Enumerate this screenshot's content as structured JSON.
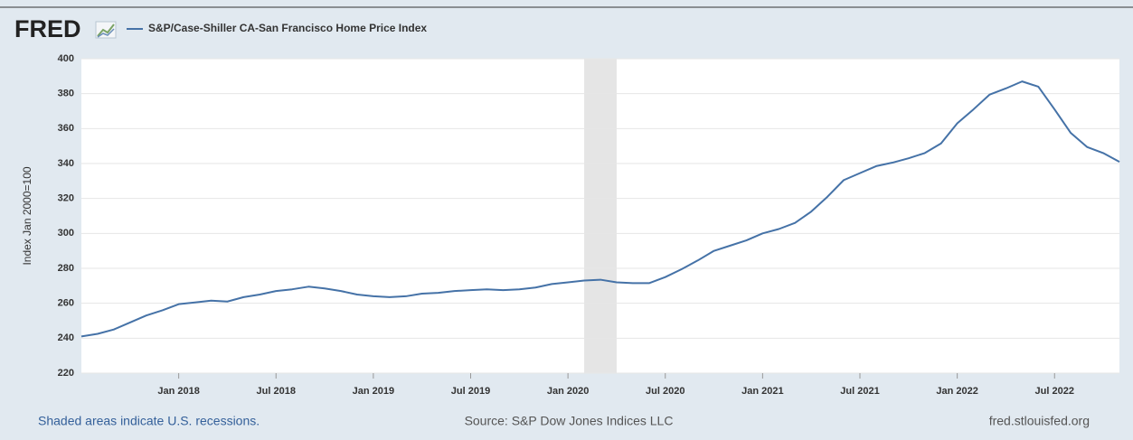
{
  "chart_data": {
    "type": "line",
    "logo": "FRED",
    "ylabel": "Index Jan 2000=100",
    "note": "Shaded areas indicate U.S. recessions.",
    "source": "Source: S&P Dow Jones Indices LLC",
    "site": "fred.stlouisfed.org",
    "x": [
      "2017-07",
      "2017-08",
      "2017-09",
      "2017-10",
      "2017-11",
      "2017-12",
      "2018-01",
      "2018-02",
      "2018-03",
      "2018-04",
      "2018-05",
      "2018-06",
      "2018-07",
      "2018-08",
      "2018-09",
      "2018-10",
      "2018-11",
      "2018-12",
      "2019-01",
      "2019-02",
      "2019-03",
      "2019-04",
      "2019-05",
      "2019-06",
      "2019-07",
      "2019-08",
      "2019-09",
      "2019-10",
      "2019-11",
      "2019-12",
      "2020-01",
      "2020-02",
      "2020-03",
      "2020-04",
      "2020-05",
      "2020-06",
      "2020-07",
      "2020-08",
      "2020-09",
      "2020-10",
      "2020-11",
      "2020-12",
      "2021-01",
      "2021-02",
      "2021-03",
      "2021-04",
      "2021-05",
      "2021-06",
      "2021-07",
      "2021-08",
      "2021-09",
      "2021-10",
      "2021-11",
      "2021-12",
      "2022-01",
      "2022-02",
      "2022-03",
      "2022-04",
      "2022-05",
      "2022-06",
      "2022-07",
      "2022-08",
      "2022-09",
      "2022-10",
      "2022-11"
    ],
    "series": [
      {
        "name": "S&P/Case-Shiller CA-San Francisco Home Price Index",
        "color": "#4572a7",
        "values": [
          241,
          242.5,
          245,
          249,
          253,
          256,
          259.5,
          260.5,
          261.5,
          261,
          263.5,
          265,
          267,
          268,
          269.5,
          268.5,
          267,
          265,
          264,
          263.5,
          264,
          265.5,
          266,
          267,
          267.5,
          268,
          267.5,
          268,
          269,
          271,
          272,
          273,
          273.5,
          272,
          271.5,
          271.5,
          275,
          279.5,
          284.5,
          290,
          293,
          296,
          300,
          302.5,
          306,
          312.5,
          321,
          330.5,
          334.5,
          338.5,
          340.5,
          343,
          346,
          351.5,
          363,
          371,
          379.5,
          383,
          387,
          384,
          371,
          357.5,
          349.5,
          346,
          341
        ]
      }
    ],
    "xlim": [
      "2017-07",
      "2022-11"
    ],
    "xticks": [
      {
        "value": "2018-01",
        "label": "Jan 2018"
      },
      {
        "value": "2018-07",
        "label": "Jul 2018"
      },
      {
        "value": "2019-01",
        "label": "Jan 2019"
      },
      {
        "value": "2019-07",
        "label": "Jul 2019"
      },
      {
        "value": "2020-01",
        "label": "Jan 2020"
      },
      {
        "value": "2020-07",
        "label": "Jul 2020"
      },
      {
        "value": "2021-01",
        "label": "Jan 2021"
      },
      {
        "value": "2021-07",
        "label": "Jul 2021"
      },
      {
        "value": "2022-01",
        "label": "Jan 2022"
      },
      {
        "value": "2022-07",
        "label": "Jul 2022"
      }
    ],
    "ylim": [
      220,
      400
    ],
    "yticks": [
      220,
      240,
      260,
      280,
      300,
      320,
      340,
      360,
      380,
      400
    ],
    "grid": true,
    "recessions": [
      {
        "start": "2020-02",
        "end": "2020-04"
      }
    ]
  }
}
